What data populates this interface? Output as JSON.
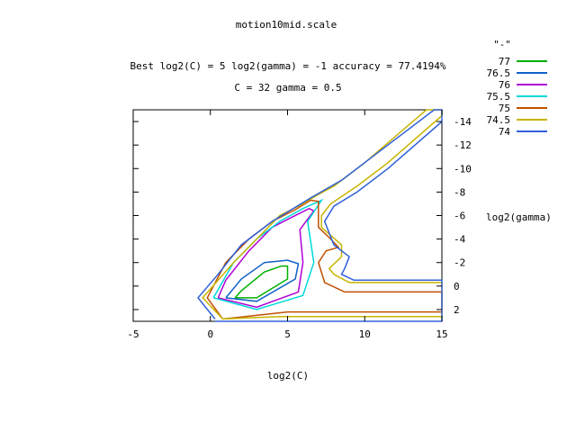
{
  "chart_data": {
    "type": "contour",
    "title": "motion10mid.scale",
    "subtitle1": "Best log2(C) = 5  log2(gamma) = -1  accuracy = 77.4194%",
    "subtitle2": "C = 32  gamma = 0.5",
    "xlabel": "log2(C)",
    "ylabel": "log2(gamma)",
    "xlim": [
      -5,
      15
    ],
    "ylim": [
      -15,
      3
    ],
    "y_reversed": true,
    "x_ticks": [
      "-5",
      "0",
      "5",
      "10",
      "15"
    ],
    "y_ticks": [
      "-14",
      "-12",
      "-10",
      "-8",
      "-6",
      "-4",
      "-2",
      "0",
      "2"
    ],
    "legend_title": "\"-\"",
    "legend_position": "top-right",
    "grid": false,
    "series": [
      {
        "name": "77",
        "color": "#00b000",
        "points": [
          [
            1.6,
            1.0
          ],
          [
            3.0,
            1.0
          ],
          [
            5.0,
            -0.6
          ],
          [
            5.0,
            -1.7
          ],
          [
            4.6,
            -1.7
          ],
          [
            3.5,
            -1.2
          ],
          [
            2.0,
            0.4
          ],
          [
            1.6,
            1.0
          ]
        ]
      },
      {
        "name": "76.5",
        "color": "#1060c8",
        "points": [
          [
            1.0,
            1.0
          ],
          [
            3.0,
            1.3
          ],
          [
            5.5,
            -0.6
          ],
          [
            5.7,
            -1.9
          ],
          [
            5.0,
            -2.2
          ],
          [
            3.5,
            -2.0
          ],
          [
            2.0,
            -0.6
          ],
          [
            1.0,
            1.0
          ]
        ]
      },
      {
        "name": "76",
        "color": "#b000d8",
        "points": [
          [
            0.5,
            1.0
          ],
          [
            3.0,
            1.8
          ],
          [
            5.7,
            0.5
          ],
          [
            6.0,
            -2.0
          ],
          [
            5.8,
            -4.8
          ],
          [
            6.7,
            -6.4
          ],
          [
            6.4,
            -6.6
          ],
          [
            5.2,
            -5.8
          ],
          [
            4.0,
            -5.0
          ],
          [
            2.5,
            -3.0
          ],
          [
            1.0,
            -0.5
          ],
          [
            0.5,
            1.0
          ]
        ]
      },
      {
        "name": "75.5",
        "color": "#00d8d8",
        "points": [
          [
            0.2,
            1.0
          ],
          [
            3.0,
            2.0
          ],
          [
            6.0,
            0.8
          ],
          [
            6.7,
            -2.0
          ],
          [
            6.3,
            -5.5
          ],
          [
            7.2,
            -7.3
          ],
          [
            6.0,
            -6.6
          ],
          [
            4.5,
            -5.5
          ],
          [
            3.0,
            -4.0
          ],
          [
            1.5,
            -2.0
          ],
          [
            0.2,
            1.0
          ]
        ]
      },
      {
        "name": "75",
        "color": "#c05000",
        "points": [
          [
            0.8,
            2.8
          ],
          [
            5.0,
            2.2
          ],
          [
            15.0,
            2.2
          ],
          [
            15.0,
            0.5
          ],
          [
            8.7,
            0.5
          ],
          [
            7.4,
            -0.3
          ],
          [
            7.0,
            -2.0
          ],
          [
            7.5,
            -3.0
          ],
          [
            8.3,
            -3.3
          ],
          [
            7.8,
            -4.0
          ],
          [
            7.0,
            -5.0
          ],
          [
            7.0,
            -7.2
          ],
          [
            6.5,
            -7.3
          ],
          [
            5.5,
            -6.5
          ],
          [
            4.0,
            -5.5
          ],
          [
            2.5,
            -4.0
          ],
          [
            1.0,
            -2.0
          ],
          [
            -0.2,
            1.0
          ],
          [
            0.8,
            2.8
          ]
        ]
      },
      {
        "name": "74.5",
        "color": "#c8b400",
        "points": [
          [
            0.8,
            2.8
          ],
          [
            4.5,
            2.6
          ],
          [
            15.0,
            2.6
          ],
          [
            15.0,
            -0.3
          ],
          [
            9.0,
            -0.3
          ],
          [
            8.0,
            -1.0
          ],
          [
            7.7,
            -1.5
          ],
          [
            8.5,
            -2.5
          ],
          [
            8.5,
            -3.5
          ],
          [
            7.2,
            -5.0
          ],
          [
            7.2,
            -6.0
          ],
          [
            7.8,
            -7.0
          ],
          [
            9.5,
            -8.5
          ],
          [
            11.5,
            -10.5
          ],
          [
            15.0,
            -14.5
          ],
          [
            15.0,
            -15.0
          ],
          [
            14.0,
            -15.0
          ],
          [
            10.0,
            -10.5
          ],
          [
            8.0,
            -8.5
          ],
          [
            7.0,
            -7.8
          ],
          [
            6.0,
            -7.0
          ],
          [
            4.5,
            -6.0
          ],
          [
            3.0,
            -4.0
          ],
          [
            1.5,
            -2.0
          ],
          [
            -0.5,
            1.0
          ],
          [
            0.8,
            2.8
          ]
        ]
      },
      {
        "name": "74",
        "color": "#3060d8",
        "points": [
          [
            0.3,
            2.8
          ],
          [
            -0.8,
            1.0
          ],
          [
            0.5,
            -1.0
          ],
          [
            2.0,
            -3.5
          ],
          [
            4.0,
            -5.5
          ],
          [
            6.5,
            -7.5
          ],
          [
            8.5,
            -9.0
          ],
          [
            10.5,
            -11.0
          ],
          [
            14.5,
            -15.0
          ],
          [
            15.0,
            -15.0
          ],
          [
            15.0,
            -14.0
          ],
          [
            11.5,
            -10.0
          ],
          [
            9.5,
            -8.0
          ],
          [
            8.0,
            -6.8
          ],
          [
            7.4,
            -5.5
          ],
          [
            8.0,
            -3.5
          ],
          [
            9.0,
            -2.5
          ],
          [
            8.7,
            -1.5
          ],
          [
            8.5,
            -1.0
          ],
          [
            9.3,
            -0.5
          ],
          [
            15.0,
            -0.5
          ],
          [
            15.0,
            3.0
          ],
          [
            0.3,
            3.0
          ]
        ]
      }
    ]
  }
}
